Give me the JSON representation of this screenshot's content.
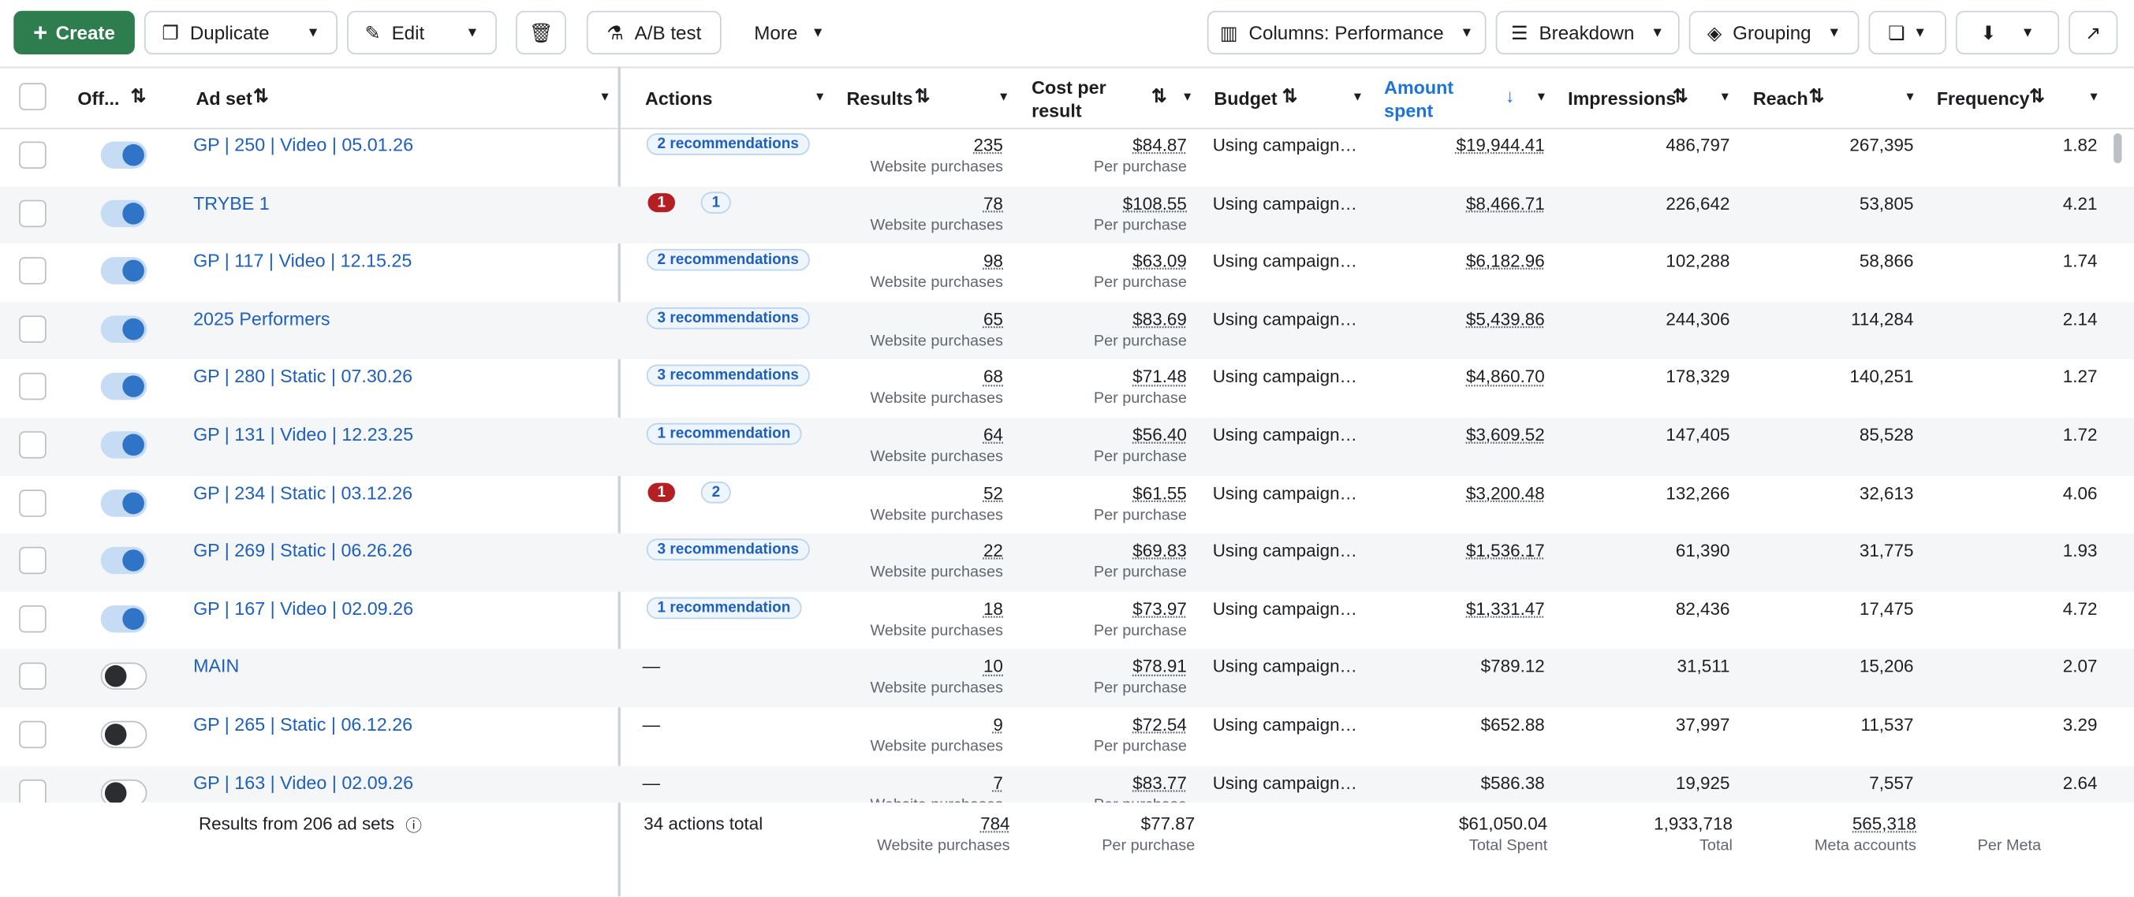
{
  "toolbar": {
    "create": "Create",
    "duplicate": "Duplicate",
    "edit": "Edit",
    "ab_test": "A/B test",
    "more": "More",
    "columns": "Columns: Performance",
    "breakdown": "Breakdown",
    "grouping": "Grouping"
  },
  "table": {
    "headers": {
      "off": "Off...",
      "ad_set": "Ad set",
      "actions": "Actions",
      "results": "Results",
      "cost": "Cost per result",
      "budget": "Budget",
      "amount": "Amount spent",
      "impressions": "Impressions",
      "reach": "Reach",
      "frequency": "Frequency"
    },
    "rows": [
      {
        "name": "GP | 250 | Video | 05.01.26",
        "on": true,
        "actions": {
          "recommendation": "2 recommendations"
        },
        "results": "235",
        "results_label": "Website purchases",
        "cost": "$84.87",
        "cost_label": "Per purchase",
        "budget": "Using campaign…",
        "amount": "$19,944.41",
        "impressions": "486,797",
        "reach": "267,395",
        "frequency": "1.82"
      },
      {
        "name": "TRYBE 1",
        "on": true,
        "actions": {
          "error": "1",
          "info": "1"
        },
        "results": "78",
        "results_label": "Website purchases",
        "cost": "$108.55",
        "cost_label": "Per purchase",
        "budget": "Using campaign…",
        "amount": "$8,466.71",
        "impressions": "226,642",
        "reach": "53,805",
        "frequency": "4.21"
      },
      {
        "name": "GP | 117 | Video | 12.15.25",
        "on": true,
        "actions": {
          "recommendation": "2 recommendations"
        },
        "results": "98",
        "results_label": "Website purchases",
        "cost": "$63.09",
        "cost_label": "Per purchase",
        "budget": "Using campaign…",
        "amount": "$6,182.96",
        "impressions": "102,288",
        "reach": "58,866",
        "frequency": "1.74"
      },
      {
        "name": "2025 Performers",
        "on": true,
        "actions": {
          "recommendation": "3 recommendations"
        },
        "results": "65",
        "results_label": "Website purchases",
        "cost": "$83.69",
        "cost_label": "Per purchase",
        "budget": "Using campaign…",
        "amount": "$5,439.86",
        "impressions": "244,306",
        "reach": "114,284",
        "frequency": "2.14"
      },
      {
        "name": "GP | 280 | Static | 07.30.26",
        "on": true,
        "actions": {
          "recommendation": "3 recommendations"
        },
        "results": "68",
        "results_label": "Website purchases",
        "cost": "$71.48",
        "cost_label": "Per purchase",
        "budget": "Using campaign…",
        "amount": "$4,860.70",
        "impressions": "178,329",
        "reach": "140,251",
        "frequency": "1.27"
      },
      {
        "name": "GP | 131 | Video | 12.23.25",
        "on": true,
        "actions": {
          "recommendation": "1 recommendation"
        },
        "results": "64",
        "results_label": "Website purchases",
        "cost": "$56.40",
        "cost_label": "Per purchase",
        "budget": "Using campaign…",
        "amount": "$3,609.52",
        "impressions": "147,405",
        "reach": "85,528",
        "frequency": "1.72"
      },
      {
        "name": "GP | 234 | Static | 03.12.26",
        "on": true,
        "actions": {
          "error": "1",
          "info": "2"
        },
        "results": "52",
        "results_label": "Website purchases",
        "cost": "$61.55",
        "cost_label": "Per purchase",
        "budget": "Using campaign…",
        "amount": "$3,200.48",
        "impressions": "132,266",
        "reach": "32,613",
        "frequency": "4.06"
      },
      {
        "name": "GP | 269 | Static | 06.26.26",
        "on": true,
        "actions": {
          "recommendation": "3 recommendations"
        },
        "results": "22",
        "results_label": "Website purchases",
        "cost": "$69.83",
        "cost_label": "Per purchase",
        "budget": "Using campaign…",
        "amount": "$1,536.17",
        "impressions": "61,390",
        "reach": "31,775",
        "frequency": "1.93"
      },
      {
        "name": "GP | 167 | Video | 02.09.26",
        "on": true,
        "actions": {
          "recommendation": "1 recommendation"
        },
        "results": "18",
        "results_label": "Website purchases",
        "cost": "$73.97",
        "cost_label": "Per purchase",
        "budget": "Using campaign…",
        "amount": "$1,331.47",
        "impressions": "82,436",
        "reach": "17,475",
        "frequency": "4.72"
      },
      {
        "name": "MAIN",
        "on": false,
        "actions": {
          "dash": "—"
        },
        "results": "10",
        "results_label": "Website purchases",
        "cost": "$78.91",
        "cost_label": "Per purchase",
        "budget": "Using campaign…",
        "amount": "$789.12",
        "impressions": "31,511",
        "reach": "15,206",
        "frequency": "2.07"
      },
      {
        "name": "GP | 265 | Static | 06.12.26",
        "on": false,
        "actions": {
          "dash": "—"
        },
        "results": "9",
        "results_label": "Website purchases",
        "cost": "$72.54",
        "cost_label": "Per purchase",
        "budget": "Using campaign…",
        "amount": "$652.88",
        "impressions": "37,997",
        "reach": "11,537",
        "frequency": "3.29"
      },
      {
        "name": "GP | 163 | Video | 02.09.26",
        "on": false,
        "actions": {
          "dash": "—"
        },
        "results": "7",
        "results_label": "Website purchases",
        "cost": "$83.77",
        "cost_label": "Per purchase",
        "budget": "Using campaign…",
        "amount": "$586.38",
        "impressions": "19,925",
        "reach": "7,557",
        "frequency": "2.64"
      }
    ],
    "footer": {
      "summary": "Results from 206 ad sets",
      "actions": "34 actions total",
      "results": "784",
      "results_label": "Website purchases",
      "cost": "$77.87",
      "cost_label": "Per purchase",
      "amount": "$61,050.04",
      "amount_label": "Total Spent",
      "impressions": "1,933,718",
      "impressions_label": "Total",
      "reach": "565,318",
      "reach_label": "Meta accounts",
      "frequency_label": "Per Meta"
    }
  }
}
